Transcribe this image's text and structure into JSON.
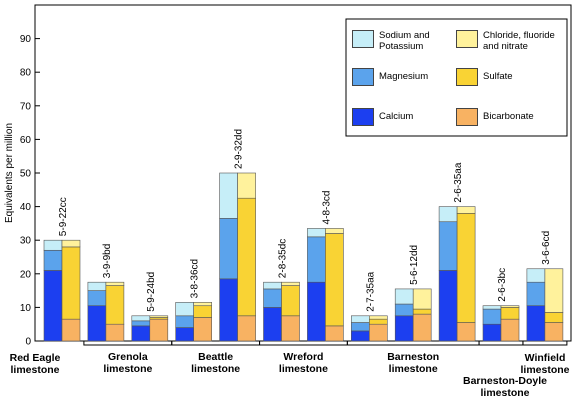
{
  "chart_data": {
    "type": "paired-stacked-bar",
    "y_label": "Equivalents per million",
    "categories": [
      "5-9-22cc",
      "3-9-9bd",
      "5-9-24bd",
      "3-8-36cd",
      "2-9-32dd",
      "2-8-35dc",
      "4-8-3cd",
      "2-7-35aa",
      "5-6-12dd",
      "2-6-35aa",
      "2-6-3bc",
      "3-6-6cd"
    ],
    "ylim": [
      0,
      100
    ],
    "yticks": [
      0,
      10,
      20,
      30,
      40,
      50,
      60,
      70,
      80,
      90
    ],
    "series": [
      {
        "name": "Calcium",
        "stack": "cations",
        "color": "#1c3ff0",
        "values": [
          21,
          10.5,
          4.5,
          4,
          18.5,
          10,
          17.5,
          3,
          7.5,
          21,
          5,
          10.5
        ]
      },
      {
        "name": "Magnesium",
        "stack": "cations",
        "color": "#5ba3ec",
        "values": [
          6,
          4.5,
          1.5,
          3.5,
          18,
          5.5,
          13.5,
          2.5,
          3.5,
          14.5,
          4.5,
          7
        ]
      },
      {
        "name": "Sodium and Potassium",
        "stack": "cations",
        "color": "#c6eef8",
        "values": [
          3,
          2.5,
          1.5,
          4,
          13.5,
          2,
          2.5,
          2,
          4.5,
          4.5,
          1,
          4
        ]
      },
      {
        "name": "Bicarbonate",
        "stack": "anions",
        "color": "#f8b262",
        "values": [
          6.5,
          5,
          6.5,
          7,
          7.5,
          7.5,
          4.5,
          5,
          8,
          5.5,
          6.5,
          5.5
        ]
      },
      {
        "name": "Sulfate",
        "stack": "anions",
        "color": "#f9d334",
        "values": [
          21.5,
          11.5,
          0.5,
          3.5,
          35,
          9,
          27.5,
          1.5,
          1.5,
          32.5,
          3.5,
          3
        ]
      },
      {
        "name": "Chloride, fluoride and nitrate",
        "stack": "anions",
        "color": "#fff29c",
        "values": [
          2,
          1,
          0.5,
          1,
          7.5,
          1,
          1.5,
          1,
          6,
          2,
          0.5,
          13
        ]
      }
    ],
    "formations": [
      {
        "name": "Red Eagle limestone",
        "first": 0,
        "last": 0
      },
      {
        "name": "Grenola limestone",
        "first": 1,
        "last": 2
      },
      {
        "name": "Beattle limestone",
        "first": 3,
        "last": 4
      },
      {
        "name": "Wreford limestone",
        "first": 5,
        "last": 6
      },
      {
        "name": "Barneston limestone",
        "first": 7,
        "last": 9
      },
      {
        "name": "Barneston-Doyle limestone",
        "first": 10,
        "last": 10
      },
      {
        "name": "Winfield limestone",
        "first": 11,
        "last": 11
      }
    ]
  }
}
